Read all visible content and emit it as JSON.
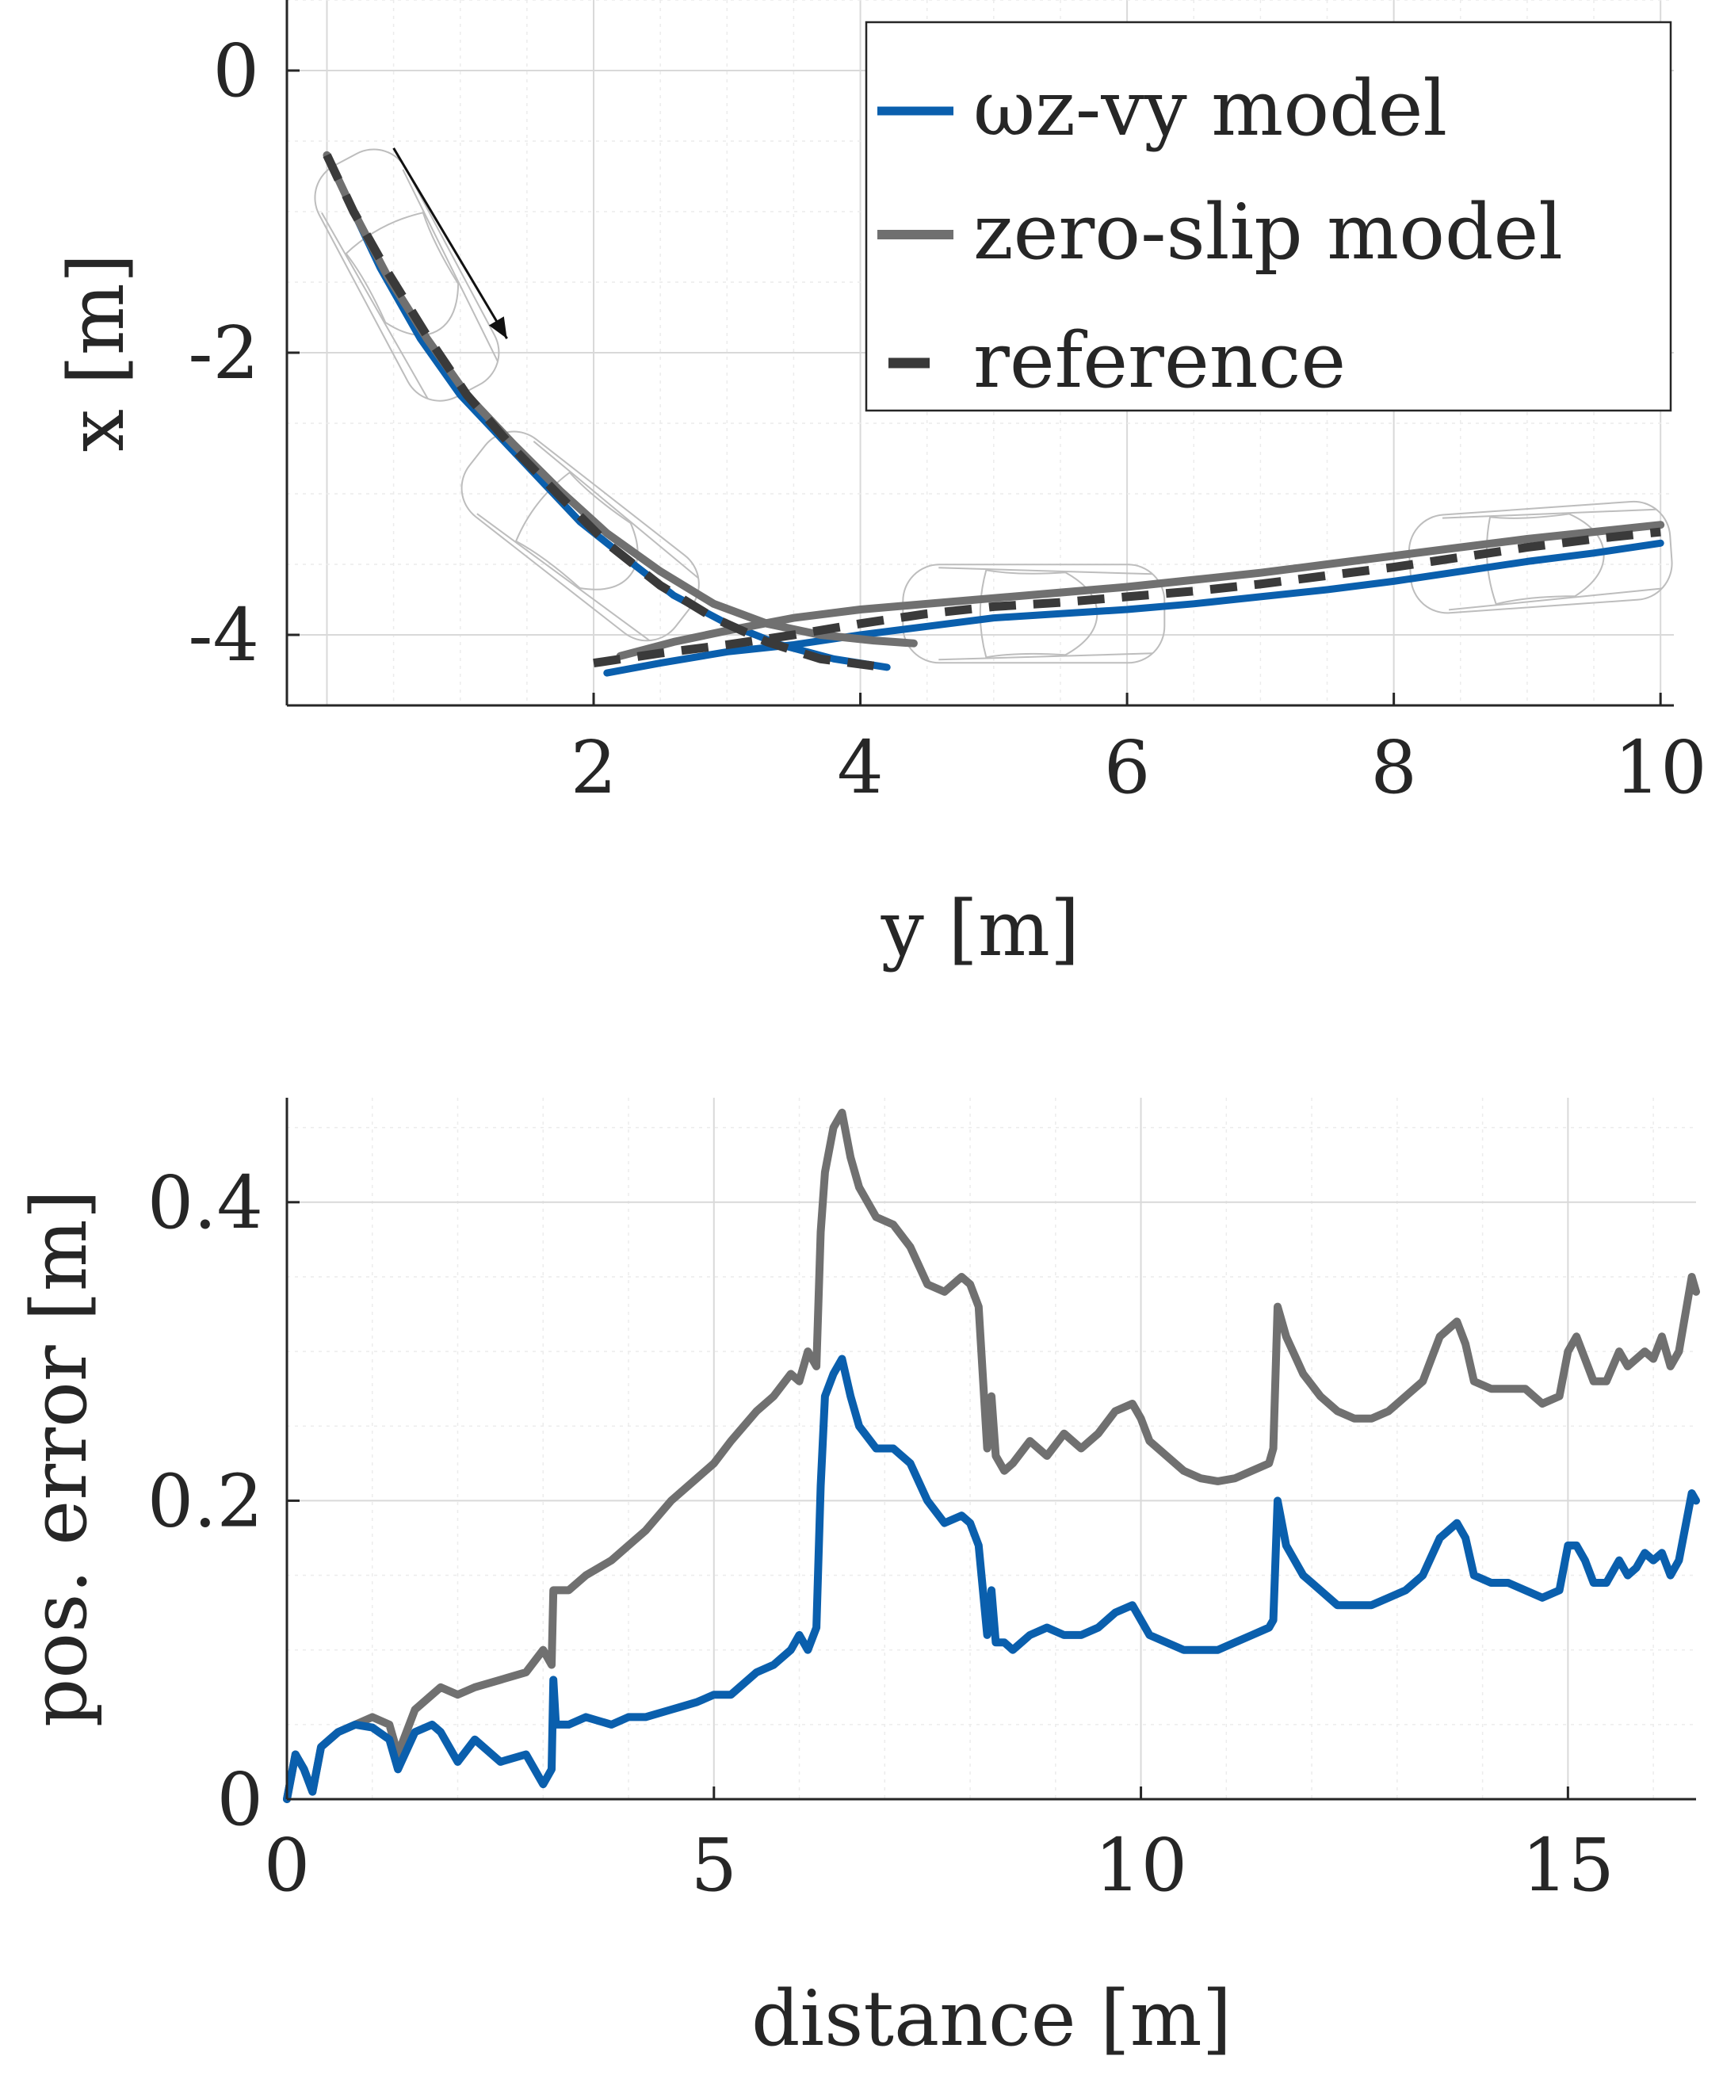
{
  "colors": {
    "wz_vy": "#0a5fad",
    "zero_slip": "#707070",
    "reference": "#3a3a3a",
    "axis": "#262626"
  },
  "chart_data": [
    {
      "id": "trajectory",
      "type": "line",
      "xlabel": "y [m]",
      "ylabel": "x [m]",
      "xlim": [
        -0.3,
        10.1
      ],
      "ylim": [
        -4.5,
        0.5
      ],
      "xticks": [
        2,
        4,
        6,
        8,
        10
      ],
      "xtick_labels": [
        "2",
        "4",
        "6",
        "8",
        "10"
      ],
      "yticks": [
        0,
        -2,
        -4
      ],
      "ytick_labels": [
        "0",
        "-2",
        "-4"
      ],
      "grid": true,
      "legend_position": "top-right",
      "legend": [
        "ωz-vy model",
        "zero-slip model",
        "reference"
      ],
      "series": [
        {
          "name": "ωz-vy model",
          "style": "solid",
          "points": [
            [
              0.0,
              -0.6
            ],
            [
              0.2,
              -1.0
            ],
            [
              0.4,
              -1.4
            ],
            [
              0.7,
              -1.9
            ],
            [
              1.0,
              -2.3
            ],
            [
              1.3,
              -2.6
            ],
            [
              1.6,
              -2.9
            ],
            [
              1.9,
              -3.2
            ],
            [
              2.3,
              -3.5
            ],
            [
              2.6,
              -3.72
            ],
            [
              3.0,
              -3.92
            ],
            [
              3.4,
              -4.07
            ],
            [
              3.8,
              -4.17
            ],
            [
              4.2,
              -4.23
            ],
            [
              2.1,
              -4.27
            ],
            [
              2.5,
              -4.2
            ],
            [
              3.0,
              -4.12
            ],
            [
              3.5,
              -4.07
            ],
            [
              4.0,
              -4.0
            ],
            [
              4.5,
              -3.94
            ],
            [
              5.0,
              -3.88
            ],
            [
              5.5,
              -3.85
            ],
            [
              6.0,
              -3.82
            ],
            [
              6.5,
              -3.78
            ],
            [
              7.0,
              -3.73
            ],
            [
              7.5,
              -3.68
            ],
            [
              8.0,
              -3.62
            ],
            [
              8.5,
              -3.55
            ],
            [
              9.0,
              -3.48
            ],
            [
              9.5,
              -3.42
            ],
            [
              10.0,
              -3.35
            ]
          ],
          "break_after": 13
        },
        {
          "name": "zero-slip model",
          "style": "solid",
          "points": [
            [
              0.0,
              -0.6
            ],
            [
              0.2,
              -1.0
            ],
            [
              0.45,
              -1.45
            ],
            [
              0.75,
              -1.9
            ],
            [
              1.05,
              -2.3
            ],
            [
              1.4,
              -2.65
            ],
            [
              1.75,
              -2.98
            ],
            [
              2.1,
              -3.28
            ],
            [
              2.5,
              -3.55
            ],
            [
              2.9,
              -3.78
            ],
            [
              3.3,
              -3.92
            ],
            [
              3.7,
              -4.0
            ],
            [
              4.1,
              -4.04
            ],
            [
              4.4,
              -4.06
            ],
            [
              2.2,
              -4.15
            ],
            [
              2.6,
              -4.05
            ],
            [
              3.0,
              -3.97
            ],
            [
              3.5,
              -3.88
            ],
            [
              4.0,
              -3.82
            ],
            [
              4.5,
              -3.78
            ],
            [
              5.0,
              -3.74
            ],
            [
              5.5,
              -3.7
            ],
            [
              6.0,
              -3.66
            ],
            [
              6.5,
              -3.61
            ],
            [
              7.0,
              -3.56
            ],
            [
              7.5,
              -3.5
            ],
            [
              8.0,
              -3.44
            ],
            [
              8.5,
              -3.38
            ],
            [
              9.0,
              -3.32
            ],
            [
              9.5,
              -3.27
            ],
            [
              10.0,
              -3.22
            ]
          ],
          "break_after": 13
        },
        {
          "name": "reference",
          "style": "dashed",
          "points": [
            [
              0.0,
              -0.6
            ],
            [
              0.2,
              -1.0
            ],
            [
              0.45,
              -1.42
            ],
            [
              0.75,
              -1.88
            ],
            [
              1.05,
              -2.3
            ],
            [
              1.4,
              -2.68
            ],
            [
              1.75,
              -3.02
            ],
            [
              2.1,
              -3.35
            ],
            [
              2.5,
              -3.65
            ],
            [
              2.9,
              -3.88
            ],
            [
              3.3,
              -4.05
            ],
            [
              3.7,
              -4.17
            ],
            [
              4.1,
              -4.22
            ],
            [
              2.0,
              -4.2
            ],
            [
              2.5,
              -4.13
            ],
            [
              3.0,
              -4.07
            ],
            [
              3.5,
              -4.0
            ],
            [
              4.0,
              -3.92
            ],
            [
              4.5,
              -3.85
            ],
            [
              5.0,
              -3.8
            ],
            [
              5.5,
              -3.77
            ],
            [
              6.0,
              -3.73
            ],
            [
              6.5,
              -3.69
            ],
            [
              7.0,
              -3.64
            ],
            [
              7.5,
              -3.58
            ],
            [
              8.0,
              -3.52
            ],
            [
              8.5,
              -3.45
            ],
            [
              9.0,
              -3.38
            ],
            [
              9.5,
              -3.32
            ],
            [
              10.0,
              -3.27
            ]
          ],
          "break_after": 12
        }
      ],
      "annotations": [
        {
          "type": "arrow",
          "from": [
            0.5,
            -0.55
          ],
          "to": [
            1.35,
            -1.9
          ]
        },
        {
          "type": "car",
          "at": [
            0.6,
            -1.45
          ],
          "angle_deg": 62
        },
        {
          "type": "car",
          "at": [
            1.9,
            -3.3
          ],
          "angle_deg": 38
        },
        {
          "type": "car",
          "at": [
            5.3,
            -3.85
          ],
          "angle_deg": 0
        },
        {
          "type": "car",
          "at": [
            9.1,
            -3.45
          ],
          "angle_deg": -4
        }
      ]
    },
    {
      "id": "position-error",
      "type": "line",
      "xlabel": "distance [m]",
      "ylabel": "pos. error [m]",
      "xlim": [
        0,
        16.5
      ],
      "ylim": [
        0,
        0.47
      ],
      "xticks": [
        0,
        5,
        10,
        15
      ],
      "xtick_labels": [
        "0",
        "5",
        "10",
        "15"
      ],
      "yticks": [
        0,
        0.2,
        0.4
      ],
      "ytick_labels": [
        "0",
        "0.2",
        "0.4"
      ],
      "grid": true,
      "series": [
        {
          "name": "zero-slip model",
          "x": [
            0,
            0.1,
            0.2,
            0.3,
            0.35,
            0.4,
            0.5,
            0.6,
            0.8,
            1.0,
            1.2,
            1.3,
            1.5,
            1.7,
            1.8,
            2.0,
            2.2,
            2.5,
            2.8,
            3.0,
            3.1,
            3.12,
            3.15,
            3.3,
            3.5,
            3.8,
            4.0,
            4.2,
            4.5,
            4.8,
            5.0,
            5.2,
            5.5,
            5.7,
            5.9,
            6.0,
            6.1,
            6.2,
            6.25,
            6.3,
            6.4,
            6.5,
            6.6,
            6.7,
            6.9,
            7.1,
            7.3,
            7.5,
            7.7,
            7.9,
            8.0,
            8.1,
            8.2,
            8.25,
            8.3,
            8.4,
            8.5,
            8.7,
            8.9,
            9.1,
            9.3,
            9.5,
            9.7,
            9.9,
            10.0,
            10.1,
            10.3,
            10.5,
            10.7,
            10.9,
            11.1,
            11.3,
            11.5,
            11.55,
            11.6,
            11.7,
            11.9,
            12.1,
            12.3,
            12.5,
            12.7,
            12.9,
            13.1,
            13.3,
            13.5,
            13.7,
            13.8,
            13.9,
            14.1,
            14.3,
            14.5,
            14.7,
            14.9,
            15.0,
            15.1,
            15.2,
            15.3,
            15.45,
            15.6,
            15.7,
            15.8,
            15.9,
            16.0,
            16.1,
            16.2,
            16.3,
            16.45,
            16.5
          ],
          "values": [
            0,
            0.03,
            0.02,
            0.005,
            0.02,
            0.035,
            0.04,
            0.045,
            0.05,
            0.055,
            0.05,
            0.03,
            0.06,
            0.07,
            0.075,
            0.07,
            0.075,
            0.08,
            0.085,
            0.1,
            0.09,
            0.14,
            0.14,
            0.14,
            0.15,
            0.16,
            0.17,
            0.18,
            0.2,
            0.215,
            0.225,
            0.24,
            0.26,
            0.27,
            0.285,
            0.28,
            0.3,
            0.29,
            0.38,
            0.42,
            0.45,
            0.46,
            0.43,
            0.41,
            0.39,
            0.385,
            0.37,
            0.345,
            0.34,
            0.35,
            0.345,
            0.33,
            0.235,
            0.27,
            0.23,
            0.22,
            0.225,
            0.24,
            0.23,
            0.245,
            0.235,
            0.245,
            0.26,
            0.265,
            0.255,
            0.24,
            0.23,
            0.22,
            0.215,
            0.213,
            0.215,
            0.22,
            0.225,
            0.235,
            0.33,
            0.31,
            0.285,
            0.27,
            0.26,
            0.255,
            0.255,
            0.26,
            0.27,
            0.28,
            0.31,
            0.32,
            0.305,
            0.28,
            0.275,
            0.275,
            0.275,
            0.265,
            0.27,
            0.3,
            0.31,
            0.295,
            0.28,
            0.28,
            0.3,
            0.29,
            0.295,
            0.3,
            0.295,
            0.31,
            0.29,
            0.3,
            0.35,
            0.34
          ]
        },
        {
          "name": "ωz-vy model",
          "x": [
            0,
            0.1,
            0.2,
            0.3,
            0.35,
            0.4,
            0.5,
            0.6,
            0.8,
            1.0,
            1.2,
            1.3,
            1.5,
            1.7,
            1.8,
            2.0,
            2.2,
            2.5,
            2.8,
            3.0,
            3.1,
            3.12,
            3.15,
            3.3,
            3.5,
            3.8,
            4.0,
            4.2,
            4.5,
            4.8,
            5.0,
            5.2,
            5.5,
            5.7,
            5.9,
            6.0,
            6.1,
            6.2,
            6.25,
            6.3,
            6.4,
            6.5,
            6.6,
            6.7,
            6.9,
            7.1,
            7.3,
            7.5,
            7.7,
            7.9,
            8.0,
            8.1,
            8.2,
            8.25,
            8.3,
            8.4,
            8.5,
            8.7,
            8.9,
            9.1,
            9.3,
            9.5,
            9.7,
            9.9,
            10.0,
            10.1,
            10.3,
            10.5,
            10.7,
            10.9,
            11.1,
            11.3,
            11.5,
            11.55,
            11.6,
            11.7,
            11.9,
            12.1,
            12.3,
            12.5,
            12.7,
            12.9,
            13.1,
            13.3,
            13.5,
            13.7,
            13.8,
            13.9,
            14.1,
            14.3,
            14.5,
            14.7,
            14.9,
            15.0,
            15.1,
            15.2,
            15.3,
            15.45,
            15.6,
            15.7,
            15.8,
            15.9,
            16.0,
            16.1,
            16.2,
            16.3,
            16.45,
            16.5
          ],
          "values": [
            0,
            0.03,
            0.02,
            0.005,
            0.02,
            0.035,
            0.04,
            0.045,
            0.05,
            0.048,
            0.04,
            0.02,
            0.045,
            0.05,
            0.045,
            0.025,
            0.04,
            0.025,
            0.03,
            0.01,
            0.02,
            0.08,
            0.05,
            0.05,
            0.055,
            0.05,
            0.055,
            0.055,
            0.06,
            0.065,
            0.07,
            0.07,
            0.085,
            0.09,
            0.1,
            0.11,
            0.1,
            0.115,
            0.21,
            0.27,
            0.285,
            0.295,
            0.27,
            0.25,
            0.235,
            0.235,
            0.225,
            0.2,
            0.185,
            0.19,
            0.185,
            0.17,
            0.11,
            0.14,
            0.105,
            0.105,
            0.1,
            0.11,
            0.115,
            0.11,
            0.11,
            0.115,
            0.125,
            0.13,
            0.12,
            0.11,
            0.105,
            0.1,
            0.1,
            0.1,
            0.105,
            0.11,
            0.115,
            0.12,
            0.2,
            0.17,
            0.15,
            0.14,
            0.13,
            0.13,
            0.13,
            0.135,
            0.14,
            0.15,
            0.175,
            0.185,
            0.175,
            0.15,
            0.145,
            0.145,
            0.14,
            0.135,
            0.14,
            0.17,
            0.17,
            0.16,
            0.145,
            0.145,
            0.16,
            0.15,
            0.155,
            0.165,
            0.16,
            0.165,
            0.15,
            0.16,
            0.205,
            0.2
          ]
        }
      ]
    }
  ]
}
